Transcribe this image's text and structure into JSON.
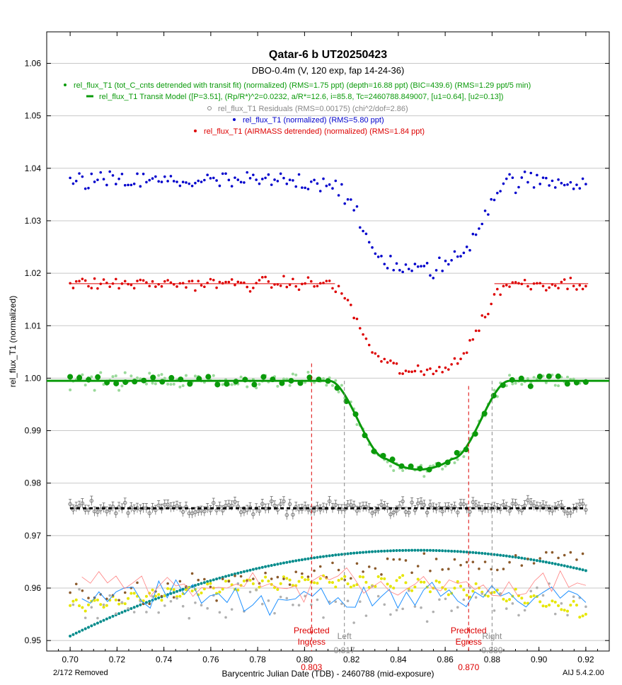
{
  "chart_data": {
    "type": "scatter",
    "title": "Qatar-6 b UT20250423",
    "subtitle": "DBO-0.4m (V, 120 exp, fap 14-24-36)",
    "xlabel": "Barycentric Julian Date (TDB) - 2460788 (mid-exposure)",
    "ylabel": "rel_flux_T1 (normalized)",
    "xlim": [
      0.69,
      0.93
    ],
    "ylim": [
      0.948,
      1.066
    ],
    "xticks": [
      "0.70",
      "0.72",
      "0.74",
      "0.76",
      "0.78",
      "0.80",
      "0.82",
      "0.84",
      "0.86",
      "0.88",
      "0.90",
      "0.92"
    ],
    "yticks": [
      "0.95",
      "0.96",
      "0.97",
      "0.98",
      "0.99",
      "1.00",
      "1.01",
      "1.02",
      "1.03",
      "1.04",
      "1.05",
      "1.06"
    ],
    "grid": "horizontal",
    "legend": [
      {
        "label": "rel_flux_T1 (tot_C_cnts detrended with transit fit) (normalized) (RMS=1.75 ppt) (depth=16.88 ppt) (BIC=439.6) (RMS=1.29 ppt/5 min)",
        "color": "#0a9a0a",
        "marker": "dot"
      },
      {
        "label": "rel_flux_T1 Transit Model ([P=3.51], (Rp/R*)^2=0.0232, a/R*=12.6, i=85.8, Tc=2460788.849007, [u1=0.64], [u2=0.13])",
        "color": "#0a9a0a",
        "marker": "line"
      },
      {
        "label": "rel_flux_T1 Residuals (RMS=0.00175) (chi^2/dof=2.86)",
        "color": "#888888",
        "marker": "circle"
      },
      {
        "label": "rel_flux_T1 (normalized) (RMS=5.80 ppt)",
        "color": "#0000cc",
        "marker": "dot"
      },
      {
        "label": "rel_flux_T1 (AIRMASS detrended) (normalized) (RMS=1.84 ppt)",
        "color": "#dd0000",
        "marker": "dot"
      }
    ],
    "transit": {
      "tc": 0.849,
      "depth": 0.01688,
      "t1": 0.803,
      "t2": 0.817,
      "t3": 0.88,
      "t4": 0.87
    },
    "series": [
      {
        "key": "normalized",
        "baseline": 1.0375,
        "depth": 0.017,
        "scatter": 0.0018,
        "color": "#0000cc"
      },
      {
        "key": "airmass",
        "baseline": 1.018,
        "depth": 0.017,
        "scatter": 0.0012,
        "color": "#dd0000"
      },
      {
        "key": "detrended",
        "baseline": 0.9995,
        "depth": 0.0169,
        "scatter": 0.001,
        "color": "#0a9a0a"
      },
      {
        "key": "residuals",
        "baseline": 0.9752,
        "scatter": 0.0012,
        "color": "#888888"
      }
    ],
    "markers": [
      {
        "x": 0.803,
        "label1": "Predicted",
        "label2": "Ingress",
        "value": "0.803",
        "color": "#dd0000"
      },
      {
        "x": 0.817,
        "label1": "",
        "label2": "Left",
        "value": "0.817",
        "color": "#888888"
      },
      {
        "x": 0.87,
        "label1": "Predicted",
        "label2": "Egress",
        "value": "0.870",
        "color": "#dd0000"
      },
      {
        "x": 0.88,
        "label1": "",
        "label2": "Right",
        "value": "0.880",
        "color": "#888888"
      }
    ],
    "removed_note": "2/172 Removed",
    "version": "AIJ 5.4.2.00"
  }
}
